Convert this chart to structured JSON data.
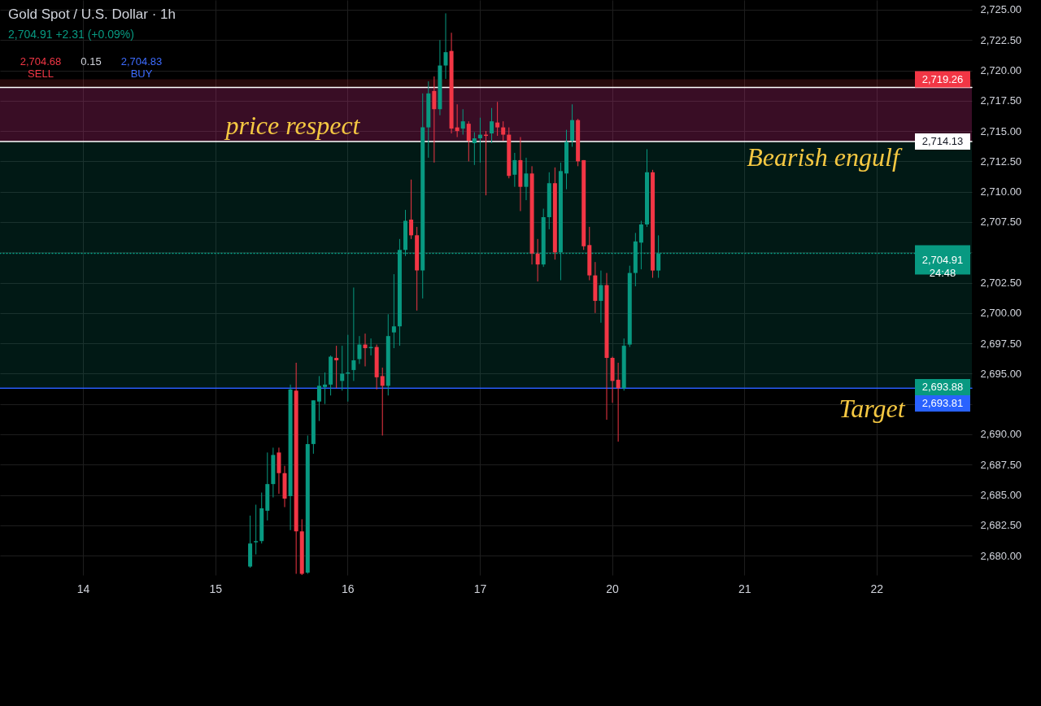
{
  "chart_data": {
    "type": "candlestick",
    "title": "Gold Spot / U.S. Dollar · 1h",
    "subtitle": "2,704.91 +2.31 (+0.09%)",
    "categories": [
      null,
      null,
      null,
      null,
      null,
      null,
      null,
      null,
      null,
      null,
      null,
      null,
      null,
      null,
      "14",
      null,
      null,
      null,
      null,
      null,
      null,
      null,
      null,
      null,
      null,
      null,
      null,
      null,
      null,
      null,
      null,
      null,
      null,
      null,
      null,
      null,
      null,
      "15",
      null,
      null,
      null,
      null,
      null,
      null,
      null,
      null,
      null,
      null,
      null,
      null,
      null,
      null,
      null,
      null,
      null,
      null,
      null,
      null,
      null,
      null,
      "16",
      null,
      null,
      null,
      null,
      null,
      null,
      null,
      null,
      null,
      null,
      null,
      null,
      null,
      null,
      null,
      null,
      null,
      null,
      null,
      null,
      null,
      null,
      "17",
      null,
      null,
      null,
      null,
      null,
      null,
      null,
      null,
      null,
      null,
      null,
      null,
      null,
      null,
      null,
      null,
      null,
      null,
      null,
      null,
      null,
      null,
      "20",
      null,
      null,
      null,
      null,
      null,
      null,
      null,
      null,
      null,
      null,
      null,
      null,
      null,
      null,
      null,
      null,
      null,
      null,
      null,
      null,
      null,
      null,
      "21",
      null,
      null,
      null,
      null,
      null,
      null,
      null,
      null,
      null,
      null,
      null,
      null,
      null,
      null,
      null,
      null,
      null,
      null,
      null,
      null,
      null,
      null,
      "22",
      null,
      null,
      null,
      null,
      null,
      null,
      null,
      null,
      null,
      null,
      null,
      null,
      null,
      null,
      null,
      null
    ],
    "ohlc": [
      null,
      null,
      null,
      null,
      null,
      null,
      null,
      null,
      null,
      null,
      null,
      null,
      null,
      null,
      null,
      null,
      null,
      null,
      null,
      null,
      null,
      null,
      null,
      null,
      null,
      null,
      null,
      null,
      null,
      null,
      null,
      null,
      null,
      null,
      null,
      null,
      null,
      null,
      null,
      null,
      null,
      null,
      null,
      [
        2679.1,
        2683.3,
        2679.0,
        2681.0
      ],
      [
        2681.1,
        2684.2,
        2680.1,
        2681.2
      ],
      [
        2681.2,
        2685.2,
        2681.0,
        2683.9
      ],
      [
        2683.7,
        2688.5,
        2682.9,
        2685.9
      ],
      [
        2685.9,
        2688.9,
        2684.8,
        2688.3
      ],
      [
        2688.5,
        2688.9,
        2685.1,
        2686.8
      ],
      [
        2686.8,
        2687.4,
        2684.0,
        2684.7
      ],
      [
        2684.9,
        2694.1,
        2682.1,
        2693.7
      ],
      [
        2693.6,
        2695.9,
        2678.5,
        2682.0
      ],
      [
        2682.0,
        2683.0,
        2678.4,
        2678.5
      ],
      [
        2678.6,
        2689.9,
        2678.5,
        2689.2
      ],
      [
        2689.2,
        2692.8,
        2688.4,
        2692.8
      ],
      [
        2692.7,
        2694.8,
        2691.1,
        2694.0
      ],
      [
        2693.9,
        2695.1,
        2692.5,
        2694.1
      ],
      [
        2694.1,
        2696.5,
        2693.2,
        2696.4
      ],
      [
        2696.3,
        2697.3,
        2693.8,
        2696.1
      ],
      [
        2694.4,
        2697.3,
        2693.6,
        2695.0
      ],
      [
        2695.0,
        2698.2,
        2692.7,
        2695.1
      ],
      [
        2695.3,
        2702.1,
        2694.4,
        2696.1
      ],
      [
        2696.2,
        2698.1,
        2695.8,
        2697.4
      ],
      [
        2697.4,
        2698.3,
        2695.6,
        2697.1
      ],
      [
        2697.1,
        2697.9,
        2696.5,
        2697.2
      ],
      [
        2697.2,
        2697.4,
        2693.7,
        2694.7
      ],
      [
        2694.8,
        2695.5,
        2689.9,
        2694.0
      ],
      [
        2694.0,
        2699.9,
        2693.2,
        2698.1
      ],
      [
        2698.4,
        2703.2,
        2697.1,
        2698.9
      ],
      [
        2698.9,
        2706.1,
        2697.3,
        2705.2
      ],
      [
        2705.2,
        2708.5,
        2704.7,
        2707.6
      ],
      [
        2707.7,
        2711.0,
        2706.1,
        2706.4
      ],
      [
        2706.4,
        2707.1,
        2700.2,
        2703.5
      ],
      [
        2703.5,
        2718.1,
        2701.2,
        2715.3
      ],
      [
        2715.3,
        2719.1,
        2712.8,
        2718.1
      ],
      [
        2718.3,
        2719.5,
        2712.4,
        2716.8
      ],
      [
        2716.8,
        2722.5,
        2716.3,
        2720.4
      ],
      [
        2720.4,
        2724.7,
        2719.3,
        2721.5
      ],
      [
        2721.6,
        2723.1,
        2714.8,
        2715.2
      ],
      [
        2715.3,
        2717.2,
        2714.5,
        2715.0
      ],
      [
        2715.2,
        2716.8,
        2714.7,
        2715.8
      ],
      [
        2715.6,
        2715.8,
        2712.5,
        2714.2
      ],
      [
        2714.0,
        2714.9,
        2712.2,
        2714.4
      ],
      [
        2714.4,
        2716.1,
        2712.4,
        2714.7
      ],
      [
        2714.7,
        2715.0,
        2709.7,
        2714.6
      ],
      [
        2714.8,
        2716.9,
        2714.0,
        2715.8
      ],
      [
        2715.7,
        2717.4,
        2714.6,
        2715.3
      ],
      [
        2715.3,
        2715.8,
        2714.2,
        2714.7
      ],
      [
        2714.7,
        2715.3,
        2711.1,
        2711.3
      ],
      [
        2711.4,
        2713.2,
        2710.4,
        2712.6
      ],
      [
        2712.6,
        2714.5,
        2708.4,
        2710.4
      ],
      [
        2710.4,
        2712.8,
        2709.3,
        2711.5
      ],
      [
        2711.5,
        2712.1,
        2704.0,
        2704.9
      ],
      [
        2704.9,
        2706.1,
        2702.6,
        2704.0
      ],
      [
        2704.0,
        2708.6,
        2703.8,
        2707.9
      ],
      [
        2707.9,
        2711.6,
        2706.9,
        2710.7
      ],
      [
        2710.7,
        2712.0,
        2704.4,
        2705.0
      ],
      [
        2705.0,
        2712.4,
        2702.7,
        2711.7
      ],
      [
        2711.5,
        2715.1,
        2710.2,
        2714.1
      ],
      [
        2714.2,
        2717.2,
        2713.7,
        2715.9
      ],
      [
        2715.9,
        2716.0,
        2712.1,
        2712.5
      ],
      [
        2712.6,
        2712.6,
        2705.2,
        2705.5
      ],
      [
        2705.6,
        2707.1,
        2702.7,
        2703.1
      ],
      [
        2703.1,
        2704.2,
        2700.0,
        2701.0
      ],
      [
        2701.0,
        2703.5,
        2699.2,
        2702.3
      ],
      [
        2702.3,
        2703.3,
        2691.2,
        2696.3
      ],
      [
        2696.3,
        2696.4,
        2692.6,
        2694.4
      ],
      [
        2694.5,
        2695.9,
        2689.4,
        2693.8
      ],
      [
        2693.8,
        2697.9,
        2693.6,
        2697.3
      ],
      [
        2697.4,
        2703.9,
        2697.2,
        2703.3
      ],
      [
        2703.3,
        2706.6,
        2702.2,
        2705.9
      ],
      [
        2705.8,
        2707.6,
        2703.6,
        2707.3
      ],
      [
        2707.3,
        2713.5,
        2707.1,
        2711.6
      ],
      [
        2711.6,
        2711.8,
        2702.9,
        2703.5
      ],
      [
        2703.5,
        2706.4,
        2702.9,
        2704.91
      ],
      null,
      null,
      null,
      null,
      null,
      null,
      null,
      null,
      null,
      null,
      null,
      null,
      null,
      null,
      null,
      null,
      null,
      null,
      null,
      null,
      null,
      null,
      null,
      null,
      null,
      null,
      null,
      null,
      null,
      null,
      null,
      null,
      null,
      null,
      null,
      null,
      null,
      null,
      null,
      null,
      null,
      null,
      null,
      null,
      null,
      null,
      null,
      null,
      null,
      null,
      null,
      null,
      null,
      null
    ],
    "colors": [
      null,
      null,
      null,
      null,
      null,
      null,
      null,
      null,
      null,
      null,
      null,
      null,
      null,
      null,
      null,
      null,
      null,
      null,
      null,
      null,
      null,
      null,
      null,
      null,
      null,
      null,
      null,
      null,
      null,
      null,
      null,
      null,
      null,
      null,
      null,
      null,
      null,
      null,
      null,
      null,
      null,
      null,
      null,
      "#089981",
      "#089981",
      "#089981",
      "#089981",
      "#089981",
      "#f23645",
      "#f23645",
      "#089981",
      "#f23645",
      "#f23645",
      "#089981",
      "#089981",
      "#089981",
      "#089981",
      "#089981",
      "#f23645",
      "#089981",
      "#089981",
      "#089981",
      "#089981",
      "#f23645",
      "#089981",
      "#f23645",
      "#f23645",
      "#089981",
      "#089981",
      "#089981",
      "#089981",
      "#f23645",
      "#f23645",
      "#089981",
      "#089981",
      "#f23645",
      "#089981",
      "#089981",
      "#f23645",
      "#f23645",
      "#089981",
      "#f23645",
      "#089981",
      "#089981",
      "#f23645",
      "#089981",
      "#f23645",
      "#f23645",
      "#f23645",
      "#089981",
      "#f23645",
      "#089981",
      "#f23645",
      "#f23645",
      "#089981",
      "#089981",
      "#f23645",
      "#089981",
      "#089981",
      "#089981",
      "#f23645",
      "#f23645",
      "#f23645",
      "#f23645",
      "#089981",
      "#f23645",
      "#f23645",
      "#f23645",
      "#089981",
      "#089981",
      "#089981",
      "#089981",
      "#089981",
      "#f23645",
      "#089981",
      null,
      null,
      null,
      null,
      null,
      null,
      null,
      null,
      null,
      null,
      null,
      null,
      null,
      null,
      null,
      null,
      null,
      null,
      null,
      null,
      null,
      null,
      null,
      null,
      null,
      null,
      null,
      null,
      null,
      null,
      null,
      null,
      null,
      null,
      null,
      null,
      null,
      null,
      null,
      null,
      null,
      null,
      null,
      null,
      null,
      null,
      null,
      null,
      null,
      null,
      null,
      null,
      null,
      null
    ],
    "ylim": [
      2678.4,
      2725.8
    ],
    "yticks": [
      {
        "value": 2680,
        "label": "2,680.00"
      },
      {
        "value": 2682.5,
        "label": "2,682.50"
      },
      {
        "value": 2685,
        "label": "2,685.00"
      },
      {
        "value": 2687.5,
        "label": "2,687.50"
      },
      {
        "value": 2690,
        "label": "2,690.00"
      },
      {
        "value": 2692.5,
        "label": null
      },
      {
        "value": 2695,
        "label": "2,695.00"
      },
      {
        "value": 2697.5,
        "label": "2,697.50"
      },
      {
        "value": 2700,
        "label": "2,700.00"
      },
      {
        "value": 2702.5,
        "label": "2,702.50"
      },
      {
        "value": 2705,
        "label": null
      },
      {
        "value": 2707.5,
        "label": "2,707.50"
      },
      {
        "value": 2710,
        "label": "2,710.00"
      },
      {
        "value": 2712.5,
        "label": "2,712.50"
      },
      {
        "value": 2715,
        "label": "2,715.00"
      },
      {
        "value": 2717.5,
        "label": "2,717.50"
      },
      {
        "value": 2720,
        "label": "2,720.00"
      },
      {
        "value": 2722.5,
        "label": "2,722.50"
      },
      {
        "value": 2725,
        "label": "2,725.00"
      }
    ],
    "grid": true,
    "bands": [
      {
        "axis": "y",
        "from": 2714.13,
        "to": 2693.88,
        "label": "2,693.88",
        "color": "#089981"
      },
      {
        "axis": "y",
        "from": 2714.13,
        "to": 2719.26,
        "label": "2,719.26",
        "color": "#f23645"
      },
      {
        "axis": "y",
        "from": 2714.13,
        "to": 2718.6,
        "color": "#9c27b0"
      }
    ],
    "ref_lines": [
      {
        "axis": "y",
        "value": 2718.6,
        "color": "#ffffff"
      },
      {
        "axis": "y",
        "value": 2714.13,
        "label": "2,714.13",
        "color": "#ffffff"
      },
      {
        "axis": "y",
        "value": 2704.91,
        "label": "2,704.91\n24:48",
        "color": "#089981",
        "line_style": "dotted"
      },
      {
        "axis": "y",
        "value": 2693.81,
        "label": "2,693.81",
        "color": "#2962ff"
      }
    ],
    "annotations": [
      "2,704.68\nSELL",
      "0.15",
      "2,704.83\nBUY",
      "price respect",
      "Bearish engulf",
      "Target"
    ]
  }
}
